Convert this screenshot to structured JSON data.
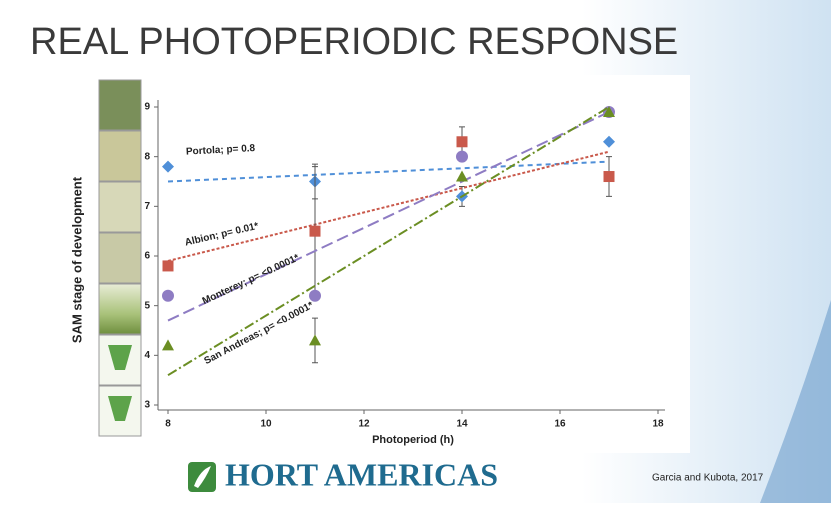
{
  "slide": {
    "title": "REAL PHOTOPERIODIC RESPONSE",
    "logo": "HORT AMERICAS",
    "credit": "Garcia and Kubota, 2017"
  },
  "chart_data": {
    "type": "scatter",
    "xlabel": "Photoperiod (h)",
    "ylabel": "SAM stage of development",
    "xlim": [
      8,
      18
    ],
    "ylim": [
      3,
      9
    ],
    "xticks": [
      8,
      10,
      12,
      14,
      16,
      18
    ],
    "yticks": [
      3,
      4,
      5,
      6,
      7,
      8,
      9
    ],
    "series": [
      {
        "name": "Portola; p= 0.8",
        "color": "#4f8fd8",
        "marker": "diamond",
        "x": [
          8,
          11,
          14,
          17
        ],
        "values": [
          7.8,
          7.5,
          7.2,
          8.3
        ],
        "errors": [
          null,
          0.35,
          0.2,
          null
        ],
        "trend_x": [
          8,
          17
        ],
        "trend": [
          7.5,
          7.9
        ]
      },
      {
        "name": "Albion; p= 0.01*",
        "color": "#c9594b",
        "marker": "square",
        "x": [
          8,
          11,
          14,
          17
        ],
        "values": [
          5.8,
          6.5,
          8.3,
          7.6
        ],
        "errors": [
          null,
          1.3,
          0.3,
          0.4
        ],
        "trend_x": [
          8,
          17
        ],
        "trend": [
          5.9,
          8.1
        ]
      },
      {
        "name": "Monterey; p= <0.0001*",
        "color": "#8e7cc3",
        "marker": "circle",
        "x": [
          8,
          11,
          14,
          17
        ],
        "values": [
          5.2,
          5.2,
          8.0,
          8.9
        ],
        "errors": [
          null,
          null,
          null,
          null
        ],
        "trend_x": [
          8,
          17
        ],
        "trend": [
          4.7,
          8.9
        ]
      },
      {
        "name": "San Andreas; p= <0.0001*",
        "color": "#6b8e23",
        "marker": "triangle",
        "x": [
          8,
          11,
          14,
          17
        ],
        "values": [
          4.2,
          4.3,
          7.6,
          8.9
        ],
        "errors": [
          null,
          0.45,
          null,
          null
        ],
        "trend_x": [
          8,
          17
        ],
        "trend": [
          3.6,
          9.0
        ]
      }
    ]
  }
}
